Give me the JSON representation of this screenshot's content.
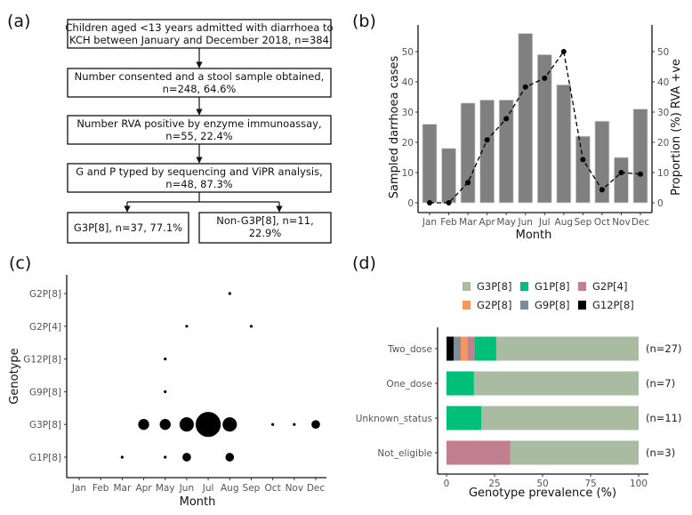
{
  "panels": {
    "a": {
      "label": "(a)",
      "boxes": [
        {
          "lines": [
            "Children aged <13 years admitted with diarrhoea  to",
            "KCH between January  and December 2018, n=384"
          ]
        },
        {
          "lines": [
            "Number consented and a stool sample obtained,",
            "n=248, 64.6%"
          ]
        },
        {
          "lines": [
            "Number RVA positive by enzyme immunoassay,",
            "n=55, 22.4%"
          ]
        },
        {
          "lines": [
            "G and P typed by sequencing and ViPR analysis,",
            "n=48, 87.3%"
          ]
        },
        {
          "lines": [
            "G3P[8], n=37, 77.1%"
          ]
        },
        {
          "lines": [
            "Non-G3P[8], n=11,",
            "22.9%"
          ]
        }
      ]
    },
    "b": {
      "label": "(b)"
    },
    "c": {
      "label": "(c)"
    },
    "d": {
      "label": "(d)"
    }
  },
  "chart_data": [
    {
      "id": "b",
      "type": "bar",
      "categories": [
        "Jan",
        "Feb",
        "Mar",
        "Apr",
        "May",
        "Jun",
        "Jul",
        "Aug",
        "Sep",
        "Oct",
        "Nov",
        "Dec"
      ],
      "series": [
        {
          "name": "Sampled diarrhoea cases",
          "kind": "bar",
          "axis": "left",
          "color": "#808080",
          "values": [
            26,
            18,
            33,
            34,
            34,
            56,
            49,
            39,
            22,
            27,
            15,
            31
          ]
        },
        {
          "name": "Proportion (%) RVA +ve",
          "kind": "line",
          "style": "dashed",
          "axis": "right",
          "color": "#000000",
          "values": [
            0,
            0,
            6.7,
            20.8,
            27.8,
            38.3,
            41.2,
            50,
            14.3,
            4.3,
            10,
            9.5
          ]
        }
      ],
      "xlabel": "Month",
      "ylabel": "Sampled darrhoea cases",
      "ylabel_right": "Proportion (%) RVA +ve",
      "ylim": [
        0,
        58
      ],
      "yticks": [
        0,
        10,
        20,
        30,
        40,
        50
      ],
      "grid": false
    },
    {
      "id": "c",
      "type": "scatter",
      "x_categories": [
        "Jan",
        "Feb",
        "Mar",
        "Apr",
        "May",
        "Jun",
        "Jul",
        "Aug",
        "Sep",
        "Oct",
        "Nov",
        "Dec"
      ],
      "y_categories": [
        "G1P[8]",
        "G3P[8]",
        "G9P[8]",
        "G12P[8]",
        "G2P[4]",
        "G2P[8]"
      ],
      "points": [
        {
          "x": "Aug",
          "y": "G2P[8]",
          "count": 1
        },
        {
          "x": "Jun",
          "y": "G2P[4]",
          "count": 1
        },
        {
          "x": "Sep",
          "y": "G2P[4]",
          "count": 1
        },
        {
          "x": "May",
          "y": "G12P[8]",
          "count": 1
        },
        {
          "x": "May",
          "y": "G9P[8]",
          "count": 1
        },
        {
          "x": "Apr",
          "y": "G3P[8]",
          "count": 3
        },
        {
          "x": "May",
          "y": "G3P[8]",
          "count": 3
        },
        {
          "x": "Jun",
          "y": "G3P[8]",
          "count": 5
        },
        {
          "x": "Jul",
          "y": "G3P[8]",
          "count": 16
        },
        {
          "x": "Aug",
          "y": "G3P[8]",
          "count": 5
        },
        {
          "x": "Oct",
          "y": "G3P[8]",
          "count": 1
        },
        {
          "x": "Nov",
          "y": "G3P[8]",
          "count": 1
        },
        {
          "x": "Dec",
          "y": "G3P[8]",
          "count": 2
        },
        {
          "x": "Mar",
          "y": "G1P[8]",
          "count": 1
        },
        {
          "x": "May",
          "y": "G1P[8]",
          "count": 1
        },
        {
          "x": "Jun",
          "y": "G1P[8]",
          "count": 2
        },
        {
          "x": "Aug",
          "y": "G1P[8]",
          "count": 2
        }
      ],
      "xlabel": "Month",
      "ylabel": "Genotype",
      "grid": false
    },
    {
      "id": "d",
      "type": "bar",
      "orientation": "horizontal",
      "stacked": true,
      "categories": [
        "Two_dose",
        "One_dose",
        "Unknown_status",
        "Not_eligible"
      ],
      "annotations": [
        "(n=27)",
        "(n=7)",
        "(n=11)",
        "(n=3)"
      ],
      "series": [
        {
          "name": "G12P[8]",
          "color": "#000000",
          "values": [
            3.7,
            0,
            0,
            0
          ]
        },
        {
          "name": "G9P[8]",
          "color": "#7f8c99",
          "values": [
            3.7,
            0,
            0,
            0
          ]
        },
        {
          "name": "G2P[8]",
          "color": "#f4975f",
          "values": [
            3.7,
            0,
            0,
            0
          ]
        },
        {
          "name": "G2P[4]",
          "color": "#c27f8f",
          "values": [
            3.7,
            0,
            0,
            33.3
          ]
        },
        {
          "name": "G1P[8]",
          "color": "#00bf78",
          "values": [
            11.1,
            14.3,
            18.2,
            0
          ]
        },
        {
          "name": "G3P[8]",
          "color": "#a9bba1",
          "values": [
            74.1,
            85.7,
            81.8,
            66.7
          ]
        }
      ],
      "legend_order": [
        "G3P[8]",
        "G1P[8]",
        "G2P[4]",
        "G2P[8]",
        "G9P[8]",
        "G12P[8]"
      ],
      "legend_position": "top",
      "xlabel": "Genotype prevalence (%)",
      "xlim": [
        0,
        100
      ],
      "xticks": [
        0,
        25,
        50,
        75,
        100
      ],
      "grid": false
    }
  ]
}
